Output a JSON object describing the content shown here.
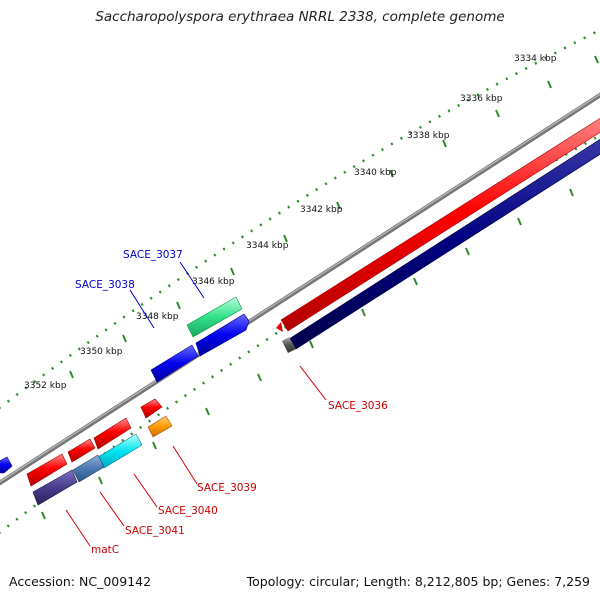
{
  "title": "Saccharopolyspora erythraea NRRL 2338, complete genome",
  "footer": {
    "accession": "Accession: NC_009142",
    "summary": "Topology: circular; Length: 8,212,805 bp; Genes: 7,259"
  },
  "ruler": {
    "labels": [
      "3334 kbp",
      "3336 kbp",
      "3338 kbp",
      "3340 kbp",
      "3342 kbp",
      "3344 kbp",
      "3346 kbp",
      "3348 kbp",
      "3350 kbp",
      "3352 kbp"
    ]
  },
  "gene_labels": {
    "sace_3037": "SACE_3037",
    "sace_3038": "SACE_3038",
    "sace_3036": "SACE_3036",
    "sace_3039": "SACE_3039",
    "sace_3040": "SACE_3040",
    "sace_3041": "SACE_3041",
    "matc": "matC"
  },
  "colors": {
    "forward_cds": "#ff0000",
    "reverse_cds": "#000080",
    "backbone": "#777777",
    "ruler_tick": "#2e8b2e",
    "forward_label": "#0000cc",
    "reverse_label": "#cc0000"
  }
}
